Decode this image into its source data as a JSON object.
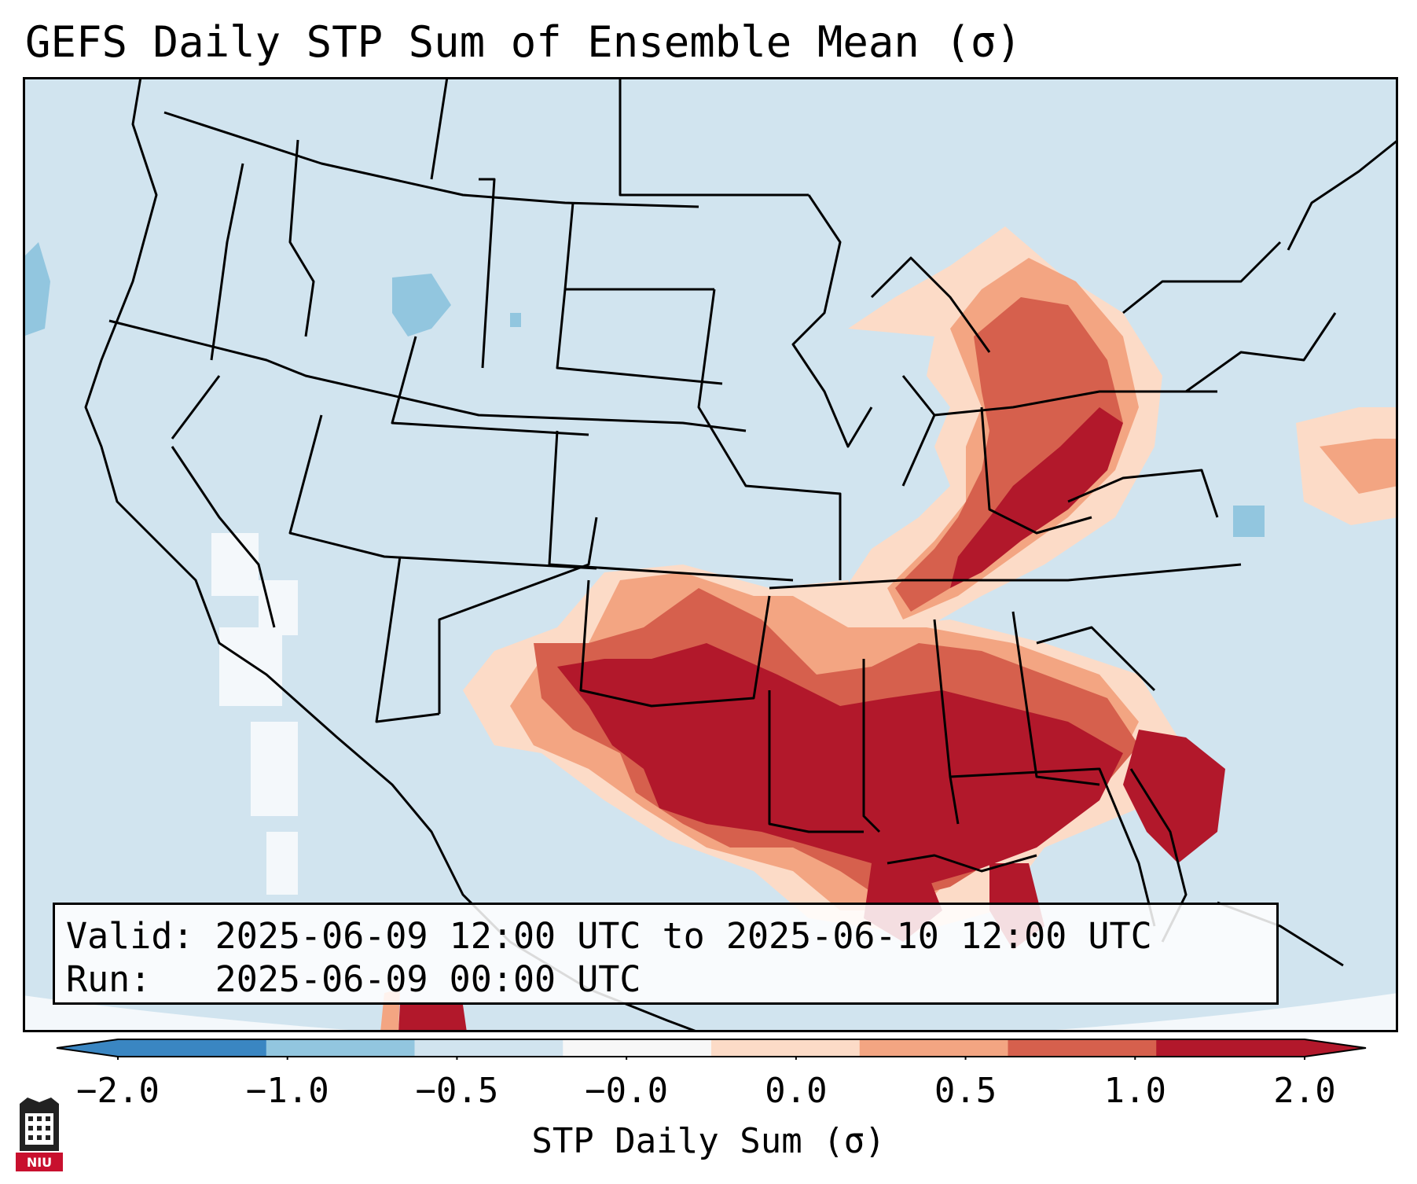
{
  "title": "GEFS Daily STP Sum of Ensemble Mean (σ)",
  "info": {
    "valid_line": "Valid: 2025-06-09 12:00 UTC to 2025-06-10 12:00 UTC",
    "run_line": "Run:   2025-06-09 00:00 UTC"
  },
  "colorbar": {
    "label": "STP Daily Sum (σ)",
    "ticks": [
      "−2.0",
      "−1.0",
      "−0.5",
      "−0.0",
      "0.0",
      "0.5",
      "1.0",
      "2.0"
    ],
    "colors": [
      "#3a86c2",
      "#92c6df",
      "#d1e4ef",
      "#f7f7f7",
      "#fcdbc7",
      "#f3a582",
      "#d6604d",
      "#b2182b"
    ],
    "extend": "both"
  },
  "map": {
    "region": "Contiguous United States and surroundings",
    "background_color": "#d1e4ef",
    "max_color": "#b2182b"
  },
  "logo": {
    "text": "NIU"
  }
}
